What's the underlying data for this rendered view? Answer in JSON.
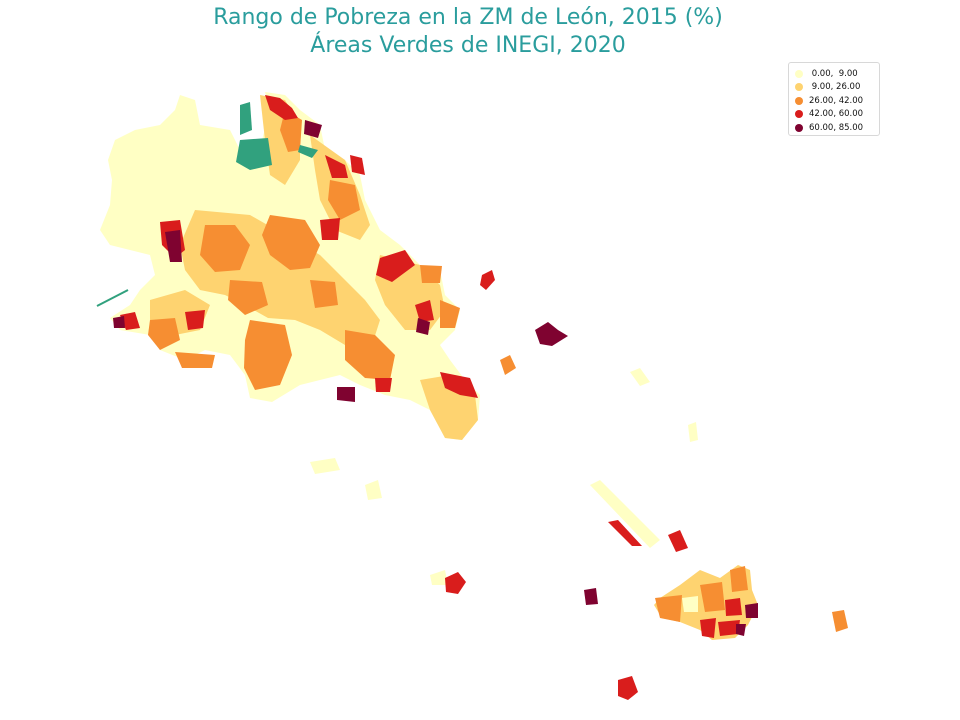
{
  "title": {
    "line1": "Rango de Pobreza en la ZM de León, 2015 (%)",
    "line2": "Áreas Verdes de INEGI, 2020"
  },
  "legend": {
    "placement": "top-right",
    "items": [
      {
        "label": " 0.00,  9.00",
        "color": "#ffffc4"
      },
      {
        "label": " 9.00, 26.00",
        "color": "#fed370"
      },
      {
        "label": "26.00, 42.00",
        "color": "#f68e32"
      },
      {
        "label": "42.00, 60.00",
        "color": "#d91d1c"
      },
      {
        "label": "60.00, 85.00",
        "color": "#7f0330"
      }
    ]
  },
  "green_area_color": "#31a17e"
}
